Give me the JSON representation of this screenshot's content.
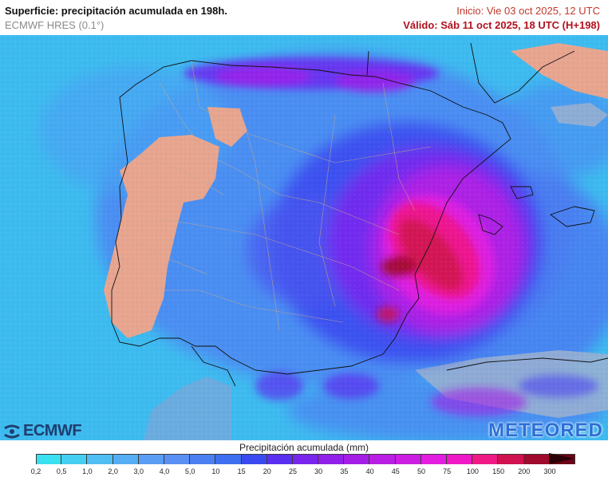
{
  "header": {
    "title": "Superficie: precipitación acumulada en 198h.",
    "model": "ECMWF HRES (0.1°)",
    "init": "Inicio: Vie 03 oct 2025, 12 UTC",
    "valid": "Válido: Sáb 11 oct 2025, 18 UTC (H+198)"
  },
  "logos": {
    "ecmwf": "ECMWF",
    "meteored": "METEORED"
  },
  "legend": {
    "title": "Precipitación acumulada (mm)",
    "labels": [
      "0,2",
      "0,5",
      "1,0",
      "2,0",
      "3,0",
      "4,0",
      "5,0",
      "10",
      "15",
      "20",
      "25",
      "30",
      "35",
      "40",
      "45",
      "50",
      "75",
      "100",
      "150",
      "200",
      "300"
    ],
    "colors": [
      "#38e0f0",
      "#44cff2",
      "#4fbef3",
      "#55adf4",
      "#5a9df4",
      "#5a8ff3",
      "#4c80f2",
      "#3f6ff1",
      "#3a4af0",
      "#5b2ff0",
      "#7a25ee",
      "#9020ea",
      "#a41ee6",
      "#b81ee4",
      "#cc1ee2",
      "#e21ee0",
      "#f019c8",
      "#f01a86",
      "#d0124f",
      "#a00a2c",
      "#6a0416"
    ],
    "arrow_color": "#2b0008"
  },
  "map": {
    "sea_color": "#3ab6ee",
    "land_color": "#e7a58f"
  }
}
